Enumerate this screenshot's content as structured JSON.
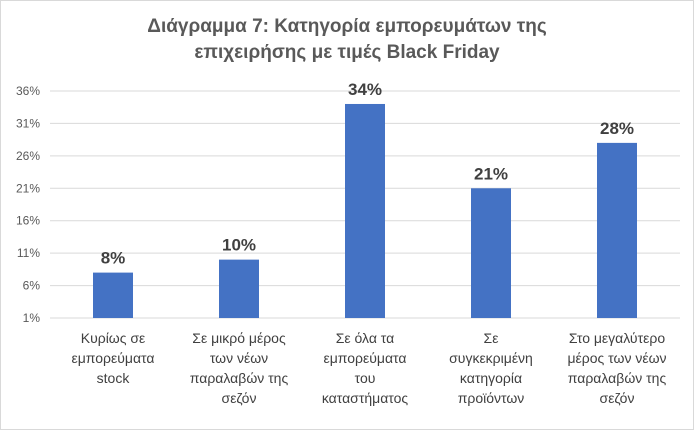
{
  "chart_data": {
    "type": "bar",
    "title_line1": "Διάγραμμα 7: Κατηγορία εμπορευμάτων  της",
    "title_line2": "επιχειρήσης με τιμές Black Friday",
    "categories": [
      "Κυρίως σε εμπορεύματα stock",
      "Σε μικρό μέρος των νέων παραλαβών της σεζόν",
      "Σε όλα τα εμπορεύματα του καταστήματος",
      "Σε συγκεκριμένη κατηγορία προϊόντων",
      "Στο μεγαλύτερο μέρος των νέων παραλαβών της σεζόν"
    ],
    "category_lines": [
      [
        "Κυρίως σε",
        "εμπορεύματα",
        "stock"
      ],
      [
        "Σε μικρό μέρος",
        "των νέων",
        "παραλαβών της",
        "σεζόν"
      ],
      [
        "Σε όλα τα",
        "εμπορεύματα",
        "του",
        "καταστήματος"
      ],
      [
        "Σε",
        "συγκεκριμένη",
        "κατηγορία",
        "προϊόντων"
      ],
      [
        "Στο μεγαλύτερο",
        "μέρος των νέων",
        "παραλαβών της",
        "σεζόν"
      ]
    ],
    "values": [
      8,
      10,
      34,
      21,
      28
    ],
    "data_labels": [
      "8%",
      "10%",
      "34%",
      "21%",
      "28%"
    ],
    "y_ticks": [
      "1%",
      "6%",
      "11%",
      "16%",
      "21%",
      "26%",
      "31%",
      "36%"
    ],
    "ylim": [
      1,
      36
    ],
    "grid": true,
    "bar_color": "#4472c4",
    "grid_color": "#d9d9d9"
  }
}
